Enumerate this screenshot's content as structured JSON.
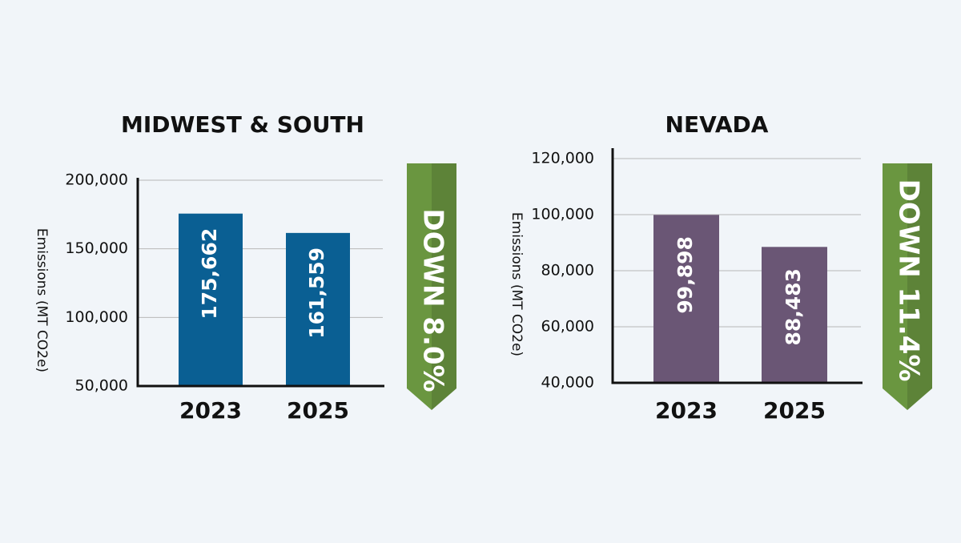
{
  "chart_data": [
    {
      "type": "bar",
      "title": "MIDWEST & SOUTH",
      "y_label": "Emissions (MT CO2e)",
      "categories": [
        "2023",
        "2025"
      ],
      "values": [
        175662,
        161559
      ],
      "value_labels": [
        "175,662",
        "161,559"
      ],
      "color": "#0a5f93",
      "ylim": [
        50000,
        200000
      ],
      "yticks": [
        {
          "value": 50000,
          "label": "50,000"
        },
        {
          "value": 100000,
          "label": "100,000"
        },
        {
          "value": 150000,
          "label": "150,000"
        },
        {
          "value": 200000,
          "label": "200,000"
        }
      ],
      "grid": true,
      "annotation": "DOWN 8.0%",
      "annotation_color": "#6a9640"
    },
    {
      "type": "bar",
      "title": "NEVADA",
      "y_label": "Emissions (MT CO2e)",
      "categories": [
        "2023",
        "2025"
      ],
      "values": [
        99898,
        88483
      ],
      "value_labels": [
        "99,898",
        "88,483"
      ],
      "color": "#6a5675",
      "ylim": [
        40000,
        120000
      ],
      "yticks": [
        {
          "value": 40000,
          "label": "40,000"
        },
        {
          "value": 60000,
          "label": "60,000"
        },
        {
          "value": 80000,
          "label": "80,000"
        },
        {
          "value": 100000,
          "label": "100,000"
        },
        {
          "value": 120000,
          "label": "120,000"
        }
      ],
      "grid": true,
      "annotation": "DOWN 11.4%",
      "annotation_color": "#6a9640"
    }
  ]
}
